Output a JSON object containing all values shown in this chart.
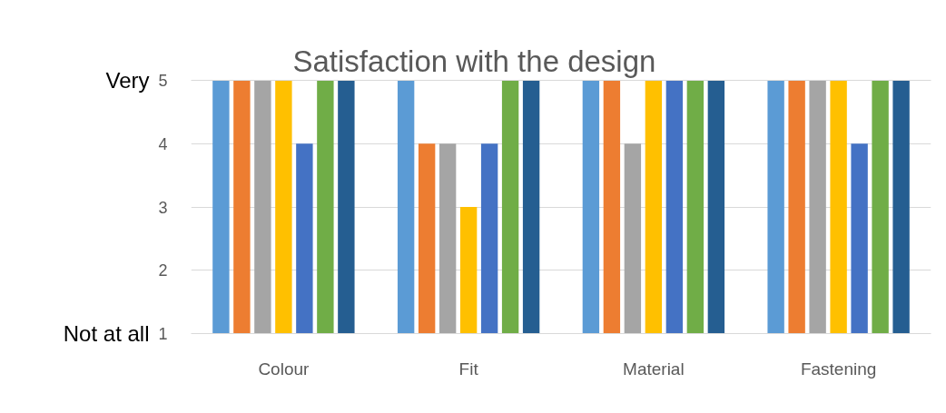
{
  "chart_data": {
    "type": "bar",
    "title": "Satisfaction with the design",
    "categories": [
      "Colour",
      "Fit",
      "Material",
      "Fastening"
    ],
    "series": [
      {
        "color": "#5b9bd5",
        "values": [
          5,
          5,
          5,
          5
        ]
      },
      {
        "color": "#ed7d31",
        "values": [
          5,
          4,
          5,
          5
        ]
      },
      {
        "color": "#a5a5a5",
        "values": [
          5,
          4,
          4,
          5
        ]
      },
      {
        "color": "#ffc000",
        "values": [
          5,
          3,
          5,
          5
        ]
      },
      {
        "color": "#4472c4",
        "values": [
          4,
          4,
          5,
          4
        ]
      },
      {
        "color": "#70ad47",
        "values": [
          5,
          5,
          5,
          5
        ]
      },
      {
        "color": "#255e91",
        "values": [
          5,
          5,
          5,
          5
        ]
      }
    ],
    "ylim": [
      1,
      5
    ],
    "yticks": [
      1,
      2,
      3,
      4,
      5
    ],
    "grid": "y",
    "annotations": [
      "Very",
      "Not at all"
    ]
  }
}
